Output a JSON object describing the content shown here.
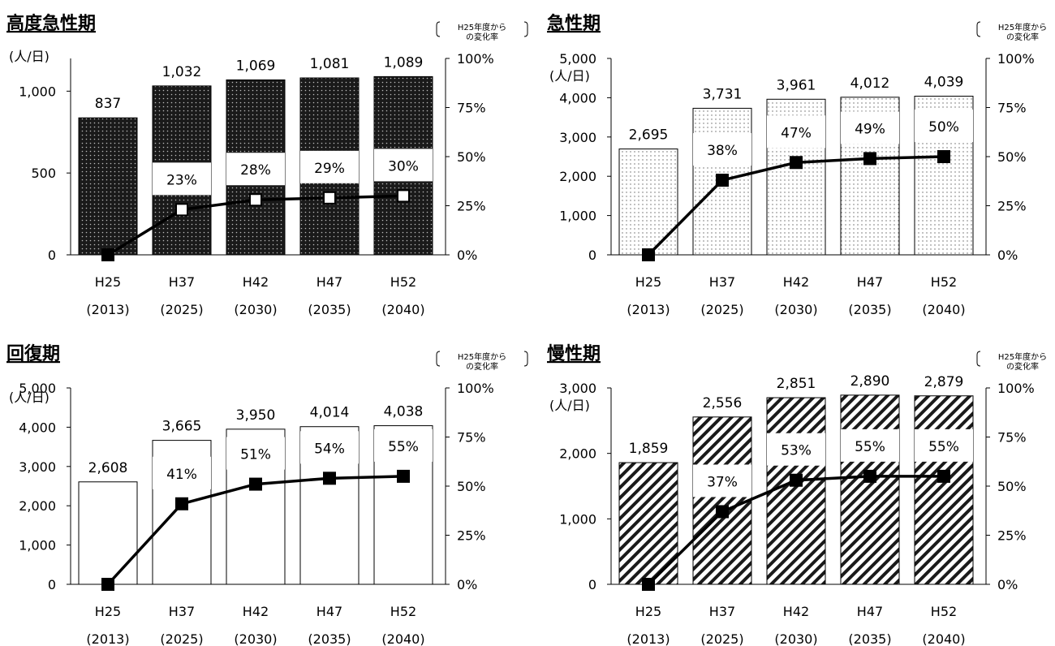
{
  "chart_data": [
    {
      "type": "bar",
      "title": "高度急性期",
      "ylabel": "(人/日)",
      "y2label": "H25年度からの変化率",
      "y2label_lines": [
        "H25年度から",
        "の変化率"
      ],
      "categories": [
        "H25",
        "H37",
        "H42",
        "H47",
        "H52"
      ],
      "category_years": [
        "(2013)",
        "(2025)",
        "(2030)",
        "(2035)",
        "(2040)"
      ],
      "values": [
        837,
        1032,
        1069,
        1081,
        1089
      ],
      "value_labels": [
        "837",
        "1,032",
        "1,069",
        "1,081",
        "1,089"
      ],
      "rates": [
        0,
        23,
        28,
        29,
        30
      ],
      "rate_labels": [
        "",
        "23%",
        "28%",
        "29%",
        "30%"
      ],
      "ylim": [
        0,
        1200
      ],
      "yticks": [
        0,
        500,
        1000
      ],
      "ytick_labels": [
        "0",
        "500",
        "1,000"
      ],
      "y2lim": [
        0,
        100
      ],
      "y2ticks": [
        0,
        25,
        50,
        75,
        100
      ],
      "y2tick_labels": [
        "0%",
        "25%",
        "50%",
        "75%",
        "100%"
      ],
      "pattern": "dark-dots"
    },
    {
      "type": "bar",
      "title": "急性期",
      "ylabel": "(人/日)",
      "y2label": "H25年度からの変化率",
      "y2label_lines": [
        "H25年度から",
        "の変化率"
      ],
      "categories": [
        "H25",
        "H37",
        "H42",
        "H47",
        "H52"
      ],
      "category_years": [
        "(2013)",
        "(2025)",
        "(2030)",
        "(2035)",
        "(2040)"
      ],
      "values": [
        2695,
        3731,
        3961,
        4012,
        4039
      ],
      "value_labels": [
        "2,695",
        "3,731",
        "3,961",
        "4,012",
        "4,039"
      ],
      "rates": [
        0,
        38,
        47,
        49,
        50
      ],
      "rate_labels": [
        "",
        "38%",
        "47%",
        "49%",
        "50%"
      ],
      "ylim": [
        0,
        5000
      ],
      "yticks": [
        0,
        1000,
        2000,
        3000,
        4000,
        5000
      ],
      "ytick_labels": [
        "0",
        "1,000",
        "2,000",
        "3,000",
        "4,000",
        "5,000"
      ],
      "y2lim": [
        0,
        100
      ],
      "y2ticks": [
        0,
        25,
        50,
        75,
        100
      ],
      "y2tick_labels": [
        "0%",
        "25%",
        "50%",
        "75%",
        "100%"
      ],
      "pattern": "light-dots"
    },
    {
      "type": "bar",
      "title": "回復期",
      "ylabel": "(人/日)",
      "y2label": "H25年度からの変化率",
      "y2label_lines": [
        "H25年度から",
        "の変化率"
      ],
      "categories": [
        "H25",
        "H37",
        "H42",
        "H47",
        "H52"
      ],
      "category_years": [
        "(2013)",
        "(2025)",
        "(2030)",
        "(2035)",
        "(2040)"
      ],
      "values": [
        2608,
        3665,
        3950,
        4014,
        4038
      ],
      "value_labels": [
        "2,608",
        "3,665",
        "3,950",
        "4,014",
        "4,038"
      ],
      "rates": [
        0,
        41,
        51,
        54,
        55
      ],
      "rate_labels": [
        "",
        "41%",
        "51%",
        "54%",
        "55%"
      ],
      "ylim": [
        0,
        5000
      ],
      "yticks": [
        0,
        1000,
        2000,
        3000,
        4000,
        5000
      ],
      "ytick_labels": [
        "0",
        "1,000",
        "2,000",
        "3,000",
        "4,000",
        "5,000"
      ],
      "y2lim": [
        0,
        100
      ],
      "y2ticks": [
        0,
        25,
        50,
        75,
        100
      ],
      "y2tick_labels": [
        "0%",
        "25%",
        "50%",
        "75%",
        "100%"
      ],
      "pattern": "white"
    },
    {
      "type": "bar",
      "title": "慢性期",
      "ylabel": "(人/日)",
      "y2label": "H25年度からの変化率",
      "y2label_lines": [
        "H25年度から",
        "の変化率"
      ],
      "categories": [
        "H25",
        "H37",
        "H42",
        "H47",
        "H52"
      ],
      "category_years": [
        "(2013)",
        "(2025)",
        "(2030)",
        "(2035)",
        "(2040)"
      ],
      "values": [
        1859,
        2556,
        2851,
        2890,
        2879
      ],
      "value_labels": [
        "1,859",
        "2,556",
        "2,851",
        "2,890",
        "2,879"
      ],
      "rates": [
        0,
        37,
        53,
        55,
        55
      ],
      "rate_labels": [
        "",
        "37%",
        "53%",
        "55%",
        "55%"
      ],
      "ylim": [
        0,
        3000
      ],
      "yticks": [
        0,
        1000,
        2000,
        3000
      ],
      "ytick_labels": [
        "0",
        "1,000",
        "2,000",
        "3,000"
      ],
      "y2lim": [
        0,
        100
      ],
      "y2ticks": [
        0,
        25,
        50,
        75,
        100
      ],
      "y2tick_labels": [
        "0%",
        "25%",
        "50%",
        "75%",
        "100%"
      ],
      "pattern": "diagonal-hatch"
    }
  ]
}
